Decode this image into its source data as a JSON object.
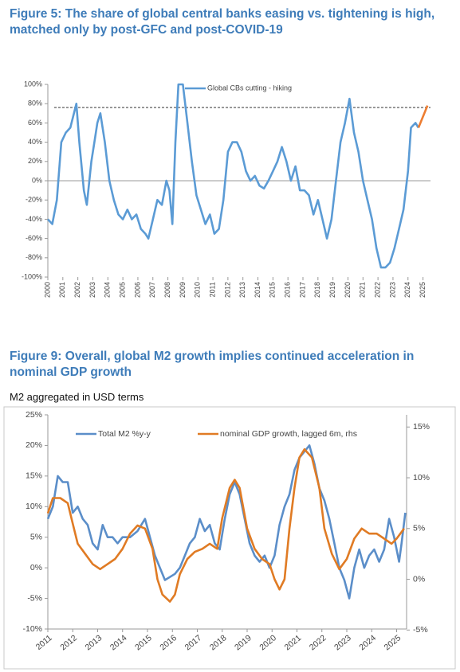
{
  "chart_data": [
    {
      "type": "line",
      "title": "Figure 5: The share of global central banks easing vs. tightening is high, matched only by post-GFC and post-COVID-19",
      "xlim": [
        2000,
        2025.5
      ],
      "xticks": [
        2000,
        2001,
        2002,
        2003,
        2004,
        2005,
        2006,
        2007,
        2008,
        2009,
        2010,
        2011,
        2012,
        2013,
        2014,
        2015,
        2016,
        2017,
        2018,
        2019,
        2020,
        2021,
        2022,
        2023,
        2024,
        2025
      ],
      "ylim": [
        -100,
        100
      ],
      "yticks": [
        {
          "value": -100,
          "label": "-100%"
        },
        {
          "value": -80,
          "label": "-80%"
        },
        {
          "value": -60,
          "label": "-60%"
        },
        {
          "value": -40,
          "label": "-40%"
        },
        {
          "value": -20,
          "label": "-20%"
        },
        {
          "value": 0,
          "label": "0%"
        },
        {
          "value": 20,
          "label": "20%"
        },
        {
          "value": 40,
          "label": "40%"
        },
        {
          "value": 60,
          "label": "60%"
        },
        {
          "value": 80,
          "label": "80%"
        },
        {
          "value": 100,
          "label": "100%"
        }
      ],
      "reference_line": 76,
      "grid": false,
      "series": [
        {
          "name": "Global CBs cutting - hiking",
          "color": "#5b9bd5",
          "x": [
            2000.0,
            2000.3,
            2000.6,
            2000.9,
            2001.2,
            2001.5,
            2001.9,
            2002.1,
            2002.4,
            2002.6,
            2002.9,
            2003.1,
            2003.3,
            2003.5,
            2003.8,
            2004.1,
            2004.4,
            2004.7,
            2005.0,
            2005.3,
            2005.6,
            2005.9,
            2006.2,
            2006.5,
            2006.7,
            2007.0,
            2007.3,
            2007.6,
            2007.9,
            2008.1,
            2008.3,
            2008.5,
            2008.7,
            2009.0,
            2009.3,
            2009.6,
            2009.9,
            2010.2,
            2010.5,
            2010.8,
            2011.1,
            2011.4,
            2011.7,
            2012.0,
            2012.3,
            2012.6,
            2012.9,
            2013.2,
            2013.5,
            2013.8,
            2014.1,
            2014.4,
            2014.7,
            2015.0,
            2015.3,
            2015.6,
            2015.9,
            2016.2,
            2016.5,
            2016.8,
            2017.1,
            2017.4,
            2017.7,
            2018.0,
            2018.3,
            2018.6,
            2018.9,
            2019.2,
            2019.5,
            2019.8,
            2020.1,
            2020.4,
            2020.7,
            2021.0,
            2021.3,
            2021.6,
            2021.9,
            2022.2,
            2022.5,
            2022.8,
            2023.1,
            2023.4,
            2023.7,
            2024.0,
            2024.2,
            2024.5,
            2024.7
          ],
          "values": [
            -40,
            -45,
            -20,
            40,
            50,
            55,
            80,
            40,
            -10,
            -25,
            20,
            40,
            60,
            70,
            40,
            0,
            -20,
            -35,
            -40,
            -30,
            -40,
            -35,
            -50,
            -55,
            -60,
            -40,
            -20,
            -25,
            0,
            -10,
            -45,
            40,
            100,
            100,
            60,
            20,
            -15,
            -30,
            -45,
            -35,
            -55,
            -50,
            -20,
            30,
            40,
            40,
            30,
            10,
            0,
            5,
            -5,
            -8,
            0,
            10,
            20,
            35,
            20,
            0,
            15,
            -10,
            -10,
            -15,
            -35,
            -20,
            -40,
            -60,
            -40,
            0,
            40,
            60,
            85,
            50,
            30,
            0,
            -20,
            -40,
            -70,
            -90,
            -90,
            -85,
            -70,
            -50,
            -30,
            10,
            55,
            60,
            55
          ]
        },
        {
          "color": "#ed7d31",
          "x": [
            2024.7,
            2025.3
          ],
          "values": [
            55,
            78
          ]
        }
      ]
    },
    {
      "type": "line",
      "title": "Figure 9: Overall, global M2 growth implies continued acceleration in nominal GDP growth",
      "subtitle": "M2 aggregated in USD terms",
      "xlim": [
        2011,
        2025.4
      ],
      "xticks": [
        2011,
        2012,
        2013,
        2014,
        2015,
        2016,
        2017,
        2018,
        2019,
        2020,
        2021,
        2022,
        2023,
        2024,
        2025
      ],
      "ylim": [
        -10,
        25
      ],
      "yticks": [
        {
          "value": -10,
          "label": "-10%"
        },
        {
          "value": -5,
          "label": "-5%"
        },
        {
          "value": 0,
          "label": "0%"
        },
        {
          "value": 5,
          "label": "5%"
        },
        {
          "value": 10,
          "label": "10%"
        },
        {
          "value": 15,
          "label": "15%"
        },
        {
          "value": 20,
          "label": "20%"
        },
        {
          "value": 25,
          "label": "25%"
        }
      ],
      "y2lim": [
        -4.9,
        16.2
      ],
      "y2ticks": [
        {
          "value": -5,
          "label": "-5%"
        },
        {
          "value": 0,
          "label": "0%"
        },
        {
          "value": 5,
          "label": "5%"
        },
        {
          "value": 10,
          "label": "10%"
        },
        {
          "value": 15,
          "label": "15%"
        }
      ],
      "grid": false,
      "series": [
        {
          "name": "Total M2 %y-y",
          "color": "#5b8ec9",
          "x": [
            2011.0,
            2011.2,
            2011.4,
            2011.6,
            2011.8,
            2012.0,
            2012.2,
            2012.4,
            2012.6,
            2012.8,
            2013.0,
            2013.2,
            2013.4,
            2013.6,
            2013.8,
            2014.0,
            2014.3,
            2014.6,
            2014.9,
            2015.1,
            2015.3,
            2015.5,
            2015.7,
            2015.9,
            2016.1,
            2016.3,
            2016.5,
            2016.7,
            2016.9,
            2017.1,
            2017.3,
            2017.5,
            2017.7,
            2017.9,
            2018.1,
            2018.3,
            2018.5,
            2018.7,
            2018.9,
            2019.1,
            2019.3,
            2019.5,
            2019.7,
            2019.9,
            2020.1,
            2020.3,
            2020.5,
            2020.7,
            2020.9,
            2021.1,
            2021.3,
            2021.5,
            2021.7,
            2021.9,
            2022.1,
            2022.3,
            2022.5,
            2022.7,
            2022.9,
            2023.1,
            2023.3,
            2023.5,
            2023.7,
            2023.9,
            2024.1,
            2024.3,
            2024.5,
            2024.7,
            2024.9,
            2025.1,
            2025.2,
            2025.35
          ],
          "values": [
            8,
            10,
            15,
            14,
            14,
            9,
            10,
            8,
            7,
            4,
            3,
            7,
            5,
            5,
            4,
            5,
            5,
            6,
            8,
            5,
            2,
            0,
            -2,
            -1.5,
            -1,
            0,
            2,
            4,
            5,
            8,
            6,
            7,
            4,
            3,
            8,
            12,
            14,
            12,
            8,
            4,
            2,
            1,
            2,
            0,
            2,
            7,
            10,
            12,
            16,
            18,
            19,
            20,
            17,
            13,
            11,
            8,
            4,
            0,
            -2,
            -5,
            0,
            3,
            0,
            2,
            3,
            1,
            3,
            8,
            5,
            1,
            4,
            9
          ]
        },
        {
          "name": "nominal GDP growth, lagged 6m, rhs",
          "color": "#e07b24",
          "axis": "y2",
          "x": [
            2011.0,
            2011.2,
            2011.5,
            2011.8,
            2012.0,
            2012.2,
            2012.5,
            2012.8,
            2013.1,
            2013.4,
            2013.7,
            2014.0,
            2014.3,
            2014.6,
            2014.9,
            2015.2,
            2015.4,
            2015.6,
            2015.9,
            2016.1,
            2016.3,
            2016.6,
            2016.9,
            2017.2,
            2017.5,
            2017.8,
            2018.0,
            2018.3,
            2018.5,
            2018.7,
            2019.0,
            2019.3,
            2019.6,
            2019.9,
            2020.1,
            2020.3,
            2020.5,
            2020.7,
            2020.9,
            2021.1,
            2021.3,
            2021.6,
            2021.9,
            2022.1,
            2022.4,
            2022.7,
            2023.0,
            2023.3,
            2023.6,
            2023.9,
            2024.2,
            2024.5,
            2024.8,
            2025.0,
            2025.3
          ],
          "values": [
            6.5,
            8,
            8,
            7.5,
            5.5,
            3.5,
            2.5,
            1.5,
            1,
            1.5,
            2,
            3,
            4.5,
            5.3,
            5,
            3,
            0,
            -1.5,
            -2.2,
            -1.5,
            0.5,
            2,
            2.7,
            3,
            3.5,
            3,
            6,
            9,
            9.8,
            9,
            5,
            3,
            2,
            1.5,
            0,
            -1,
            0,
            5,
            9,
            12,
            12.8,
            12,
            9,
            5,
            2.5,
            1,
            2,
            4,
            5,
            4.5,
            4.5,
            4,
            3.5,
            4,
            5
          ]
        }
      ]
    }
  ]
}
